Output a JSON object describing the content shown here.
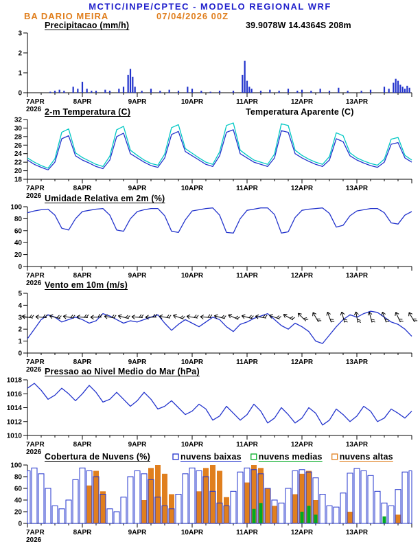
{
  "header": {
    "line1": "MCTIC/INPE/CPTEC - MODELO REGIONAL WRF",
    "station": "BA DARIO MEIRA",
    "run_datetime": "07/04/2026 00Z"
  },
  "colors": {
    "header_blue": "#2222cc",
    "orange": "#e07f1e",
    "line_blue": "#2233cc",
    "cyan": "#00c8c4",
    "green": "#00aa22",
    "axis": "#000000"
  },
  "x_axis": {
    "year_label": "2026",
    "day_labels": [
      "7APR",
      "8APR",
      "9APR",
      "10APR",
      "11APR",
      "12APR",
      "13APR"
    ],
    "hours_total": 168,
    "major_tick_hours": 24,
    "minor_tick_hours": 6
  },
  "chart_data": [
    {
      "type": "bar",
      "title": "Precipitacao (mm/h)",
      "right_label": {
        "text": "39.9078W 14.4364S 208m",
        "color": "#e07f1e"
      },
      "ylim": [
        0,
        3
      ],
      "yticks": [
        0,
        1,
        2,
        3
      ],
      "bar_color": "#2233cc",
      "bars": [
        [
          10,
          0.05
        ],
        [
          12,
          0.1
        ],
        [
          14,
          0.15
        ],
        [
          16,
          0.1
        ],
        [
          20,
          0.3
        ],
        [
          22,
          0.2
        ],
        [
          24,
          0.55
        ],
        [
          26,
          0.2
        ],
        [
          28,
          0.1
        ],
        [
          30,
          0.1
        ],
        [
          34,
          0.15
        ],
        [
          36,
          0.1
        ],
        [
          40,
          0.2
        ],
        [
          42,
          0.3
        ],
        [
          44,
          0.9
        ],
        [
          45,
          1.2
        ],
        [
          46,
          0.8
        ],
        [
          47,
          0.3
        ],
        [
          50,
          0.1
        ],
        [
          54,
          0.2
        ],
        [
          58,
          0.1
        ],
        [
          62,
          0.15
        ],
        [
          66,
          0.1
        ],
        [
          70,
          0.3
        ],
        [
          72,
          0.2
        ],
        [
          76,
          0.1
        ],
        [
          80,
          0.05
        ],
        [
          84,
          0.1
        ],
        [
          90,
          0.1
        ],
        [
          94,
          0.9
        ],
        [
          95,
          1.6
        ],
        [
          96,
          0.6
        ],
        [
          97,
          0.3
        ],
        [
          98,
          0.2
        ],
        [
          102,
          0.1
        ],
        [
          106,
          0.15
        ],
        [
          110,
          0.1
        ],
        [
          114,
          0.2
        ],
        [
          118,
          0.1
        ],
        [
          120,
          0.15
        ],
        [
          124,
          0.1
        ],
        [
          128,
          0.2
        ],
        [
          132,
          0.1
        ],
        [
          136,
          0.25
        ],
        [
          140,
          0.1
        ],
        [
          146,
          0.1
        ],
        [
          150,
          0.15
        ],
        [
          156,
          0.3
        ],
        [
          158,
          0.2
        ],
        [
          160,
          0.5
        ],
        [
          161,
          0.7
        ],
        [
          162,
          0.6
        ],
        [
          163,
          0.4
        ],
        [
          164,
          0.3
        ],
        [
          165,
          0.2
        ],
        [
          166,
          0.35
        ],
        [
          167,
          0.25
        ]
      ]
    },
    {
      "type": "line",
      "title": "2-m Temperatura (C)",
      "right_label": {
        "text": "Temperatura Aparente (C)",
        "color": "#00c8c4"
      },
      "ylim": [
        18,
        32
      ],
      "yticks": [
        18,
        20,
        22,
        24,
        26,
        28,
        30,
        32
      ],
      "x_step_hours": 3,
      "series": [
        {
          "name": "2-m Temperatura (C)",
          "color": "#2233cc",
          "values": [
            22.5,
            21.5,
            20.8,
            20.2,
            22.0,
            27.5,
            28.2,
            23.5,
            22.5,
            21.8,
            21.0,
            20.5,
            22.5,
            28.0,
            28.8,
            24.0,
            23.0,
            22.0,
            21.2,
            20.8,
            23.0,
            28.5,
            29.2,
            24.5,
            23.5,
            22.5,
            21.5,
            21.0,
            23.5,
            29.0,
            29.6,
            24.0,
            23.0,
            22.0,
            21.5,
            21.0,
            23.0,
            29.4,
            29.0,
            24.0,
            23.0,
            22.2,
            21.5,
            21.0,
            22.5,
            27.5,
            26.8,
            23.5,
            22.5,
            21.8,
            21.2,
            20.8,
            22.0,
            26.2,
            26.6,
            23.0,
            22.0
          ]
        },
        {
          "name": "Temperatura Aparente (C)",
          "color": "#00c8c4",
          "values": [
            23.0,
            22.0,
            21.2,
            20.6,
            22.8,
            29.0,
            29.8,
            24.2,
            23.1,
            22.3,
            21.5,
            21.0,
            23.4,
            29.6,
            30.4,
            24.8,
            23.6,
            22.5,
            21.7,
            21.3,
            23.9,
            30.1,
            30.8,
            25.2,
            24.1,
            23.0,
            22.0,
            21.5,
            24.4,
            30.6,
            31.2,
            24.8,
            23.6,
            22.5,
            22.0,
            21.5,
            23.9,
            31.0,
            30.6,
            24.8,
            23.6,
            22.7,
            22.0,
            21.5,
            23.3,
            28.9,
            28.2,
            24.2,
            23.0,
            22.3,
            21.7,
            21.3,
            22.7,
            27.4,
            27.8,
            23.6,
            22.5
          ]
        }
      ]
    },
    {
      "type": "line",
      "title": "Umidade Relativa em 2m (%)",
      "ylim": [
        0,
        100
      ],
      "yticks": [
        0,
        20,
        40,
        60,
        80,
        100
      ],
      "x_step_hours": 3,
      "series": [
        {
          "name": "Umidade Relativa em 2m (%)",
          "color": "#2233cc",
          "values": [
            90,
            93,
            95,
            96,
            86,
            64,
            61,
            80,
            92,
            94,
            96,
            97,
            86,
            61,
            59,
            80,
            92,
            95,
            97,
            97,
            85,
            59,
            57,
            78,
            93,
            95,
            97,
            98,
            86,
            57,
            56,
            80,
            94,
            96,
            98,
            98,
            87,
            56,
            58,
            82,
            94,
            96,
            97,
            98,
            89,
            66,
            69,
            85,
            93,
            95,
            97,
            97,
            90,
            73,
            71,
            86,
            92
          ]
        }
      ]
    },
    {
      "type": "wind",
      "title": "Vento em 10m (m/s)",
      "ylim": [
        0,
        5
      ],
      "yticks": [
        0,
        1,
        2,
        3,
        4,
        5
      ],
      "x_step_hours": 3,
      "barb_y": 3.0,
      "barb_color": "#000000",
      "series": [
        {
          "name": "Vento em 10m (m/s)",
          "color": "#2233cc",
          "values": [
            1.2,
            2.0,
            2.8,
            3.2,
            3.0,
            2.6,
            2.8,
            3.0,
            2.8,
            2.5,
            2.7,
            3.3,
            3.1,
            2.8,
            2.5,
            2.7,
            2.6,
            2.8,
            3.0,
            3.2,
            2.5,
            1.9,
            2.4,
            2.8,
            2.5,
            2.2,
            2.6,
            3.0,
            2.8,
            2.2,
            1.8,
            2.4,
            2.6,
            2.9,
            3.1,
            3.3,
            2.8,
            2.3,
            2.0,
            2.5,
            2.2,
            1.8,
            1.0,
            0.8,
            1.5,
            2.2,
            2.8,
            3.2,
            3.0,
            3.3,
            3.5,
            3.4,
            3.0,
            2.6,
            2.4,
            2.0,
            1.4
          ]
        }
      ],
      "barbs": [
        [
          0,
          10
        ],
        [
          6,
          5
        ],
        [
          12,
          15
        ],
        [
          18,
          10
        ],
        [
          24,
          5
        ],
        [
          30,
          0
        ],
        [
          36,
          10
        ],
        [
          42,
          15
        ],
        [
          48,
          5
        ],
        [
          54,
          0
        ],
        [
          60,
          10
        ],
        [
          66,
          20
        ],
        [
          72,
          10
        ],
        [
          78,
          5
        ],
        [
          84,
          15
        ],
        [
          90,
          25
        ],
        [
          96,
          15
        ],
        [
          102,
          10
        ],
        [
          108,
          20
        ],
        [
          114,
          30
        ],
        [
          120,
          45
        ],
        [
          126,
          60
        ],
        [
          132,
          70
        ],
        [
          138,
          75
        ],
        [
          144,
          80
        ],
        [
          150,
          75
        ],
        [
          156,
          70
        ],
        [
          162,
          65
        ],
        [
          168,
          60
        ]
      ]
    },
    {
      "type": "line",
      "title": "Pressao ao Nivel Medio do Mar (hPa)",
      "ylim": [
        1010,
        1018
      ],
      "yticks": [
        1010,
        1012,
        1014,
        1016,
        1018
      ],
      "x_step_hours": 3,
      "series": [
        {
          "name": "Pressao ao Nivel Medio do Mar (hPa)",
          "color": "#2233cc",
          "values": [
            1016.8,
            1017.5,
            1016.5,
            1015.2,
            1015.8,
            1016.8,
            1016.0,
            1015.0,
            1016.0,
            1017.2,
            1016.2,
            1014.8,
            1015.2,
            1016.2,
            1015.2,
            1014.2,
            1015.0,
            1016.2,
            1015.2,
            1013.8,
            1014.2,
            1015.0,
            1014.0,
            1013.0,
            1013.5,
            1014.5,
            1013.8,
            1012.2,
            1012.8,
            1014.2,
            1013.2,
            1012.2,
            1013.0,
            1014.5,
            1013.5,
            1011.8,
            1012.5,
            1014.0,
            1013.0,
            1011.8,
            1012.5,
            1014.0,
            1013.2,
            1011.5,
            1012.2,
            1013.8,
            1013.0,
            1012.0,
            1012.8,
            1014.2,
            1013.5,
            1012.0,
            1012.5,
            1013.8,
            1013.2,
            1012.5,
            1013.5
          ]
        }
      ]
    },
    {
      "type": "cloud",
      "title": "Cobertura de Nuvens (%)",
      "ylim": [
        0,
        100
      ],
      "yticks": [
        0,
        20,
        40,
        60,
        80,
        100
      ],
      "x_step_hours": 3,
      "legend": [
        {
          "label": "nuvens baixas",
          "color": "#2233cc"
        },
        {
          "label": "nuvens medias",
          "color": "#00aa22"
        },
        {
          "label": "nuvens altas",
          "color": "#e07f1e"
        }
      ],
      "series": [
        {
          "name": "nuvens altas",
          "color": "#e07f1e",
          "style": "fill",
          "width": 8,
          "z": 0,
          "values": [
            0,
            0,
            0,
            0,
            0,
            0,
            0,
            0,
            0,
            65,
            90,
            55,
            0,
            0,
            0,
            0,
            0,
            40,
            95,
            100,
            85,
            50,
            0,
            0,
            0,
            55,
            95,
            100,
            90,
            45,
            0,
            0,
            70,
            100,
            95,
            60,
            30,
            0,
            0,
            50,
            85,
            90,
            40,
            0,
            0,
            0,
            0,
            20,
            0,
            0,
            0,
            0,
            0,
            0,
            15,
            0,
            0
          ]
        },
        {
          "name": "nuvens medias",
          "color": "#00aa22",
          "style": "fill",
          "width": 5,
          "z": 1,
          "values": [
            0,
            0,
            0,
            0,
            0,
            0,
            0,
            0,
            0,
            0,
            0,
            0,
            0,
            0,
            0,
            0,
            0,
            0,
            0,
            0,
            0,
            0,
            0,
            0,
            0,
            0,
            0,
            0,
            0,
            0,
            0,
            0,
            0,
            25,
            35,
            0,
            0,
            0,
            0,
            0,
            20,
            30,
            15,
            0,
            0,
            0,
            0,
            0,
            0,
            0,
            0,
            0,
            12,
            0,
            0,
            0,
            0
          ]
        },
        {
          "name": "nuvens baixas",
          "color": "#2233cc",
          "style": "outline",
          "width": 8,
          "z": 2,
          "values": [
            90,
            95,
            85,
            60,
            30,
            25,
            40,
            75,
            95,
            90,
            80,
            50,
            25,
            20,
            45,
            80,
            90,
            85,
            75,
            45,
            30,
            25,
            50,
            85,
            95,
            90,
            80,
            55,
            35,
            30,
            55,
            88,
            95,
            92,
            85,
            60,
            40,
            35,
            60,
            90,
            92,
            88,
            78,
            50,
            30,
            28,
            52,
            86,
            94,
            90,
            82,
            55,
            35,
            30,
            58,
            88,
            90
          ]
        }
      ]
    }
  ]
}
